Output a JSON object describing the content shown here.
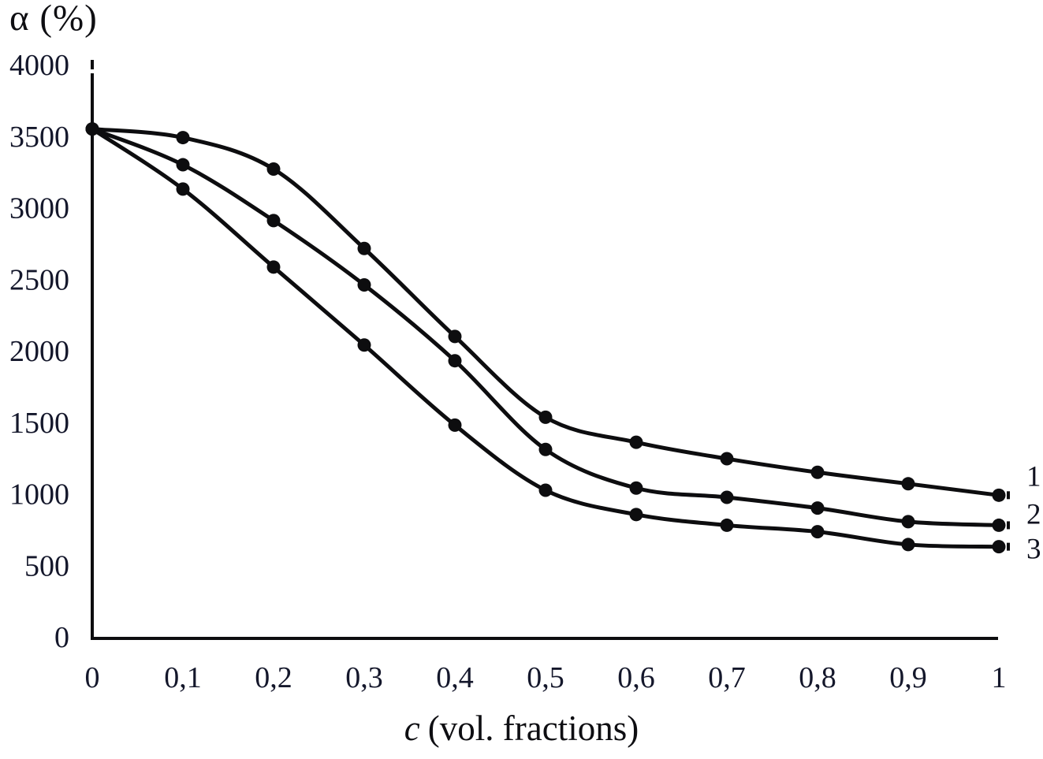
{
  "chart_data": {
    "type": "line",
    "title": "",
    "ylabel": "α (%)",
    "xlabel": "c (vol. fractions)",
    "xlabel_var": "c",
    "xlabel_rest": "(vol. fractions)",
    "xlim": [
      0,
      1
    ],
    "ylim": [
      0,
      4000
    ],
    "grid": false,
    "legend_position": "right-end-labels",
    "marker": "filled-circle",
    "line_color": "#0d0d0f",
    "text_color": "#14172b",
    "background_color": "#ffffff",
    "x": [
      0,
      0.1,
      0.2,
      0.3,
      0.4,
      0.5,
      0.6,
      0.7,
      0.8,
      0.9,
      1
    ],
    "x_tick_labels": [
      "0",
      "0,1",
      "0,2",
      "0,3",
      "0,4",
      "0,5",
      "0,6",
      "0,7",
      "0,8",
      "0,9",
      "1"
    ],
    "y_ticks": [
      0,
      500,
      1000,
      1500,
      2000,
      2500,
      3000,
      3500,
      4000
    ],
    "y_tick_labels": [
      "0",
      "500",
      "1000",
      "1500",
      "2000",
      "2500",
      "3000",
      "3500",
      "4000"
    ],
    "series": [
      {
        "name": "1",
        "values": [
          3550,
          3490,
          3270,
          2715,
          2100,
          1535,
          1360,
          1245,
          1150,
          1070,
          990
        ]
      },
      {
        "name": "2",
        "values": [
          3550,
          3300,
          2910,
          2460,
          1930,
          1310,
          1040,
          975,
          900,
          805,
          780
        ]
      },
      {
        "name": "3",
        "values": [
          3550,
          3130,
          2585,
          2040,
          1480,
          1025,
          855,
          780,
          735,
          645,
          630
        ]
      }
    ]
  }
}
